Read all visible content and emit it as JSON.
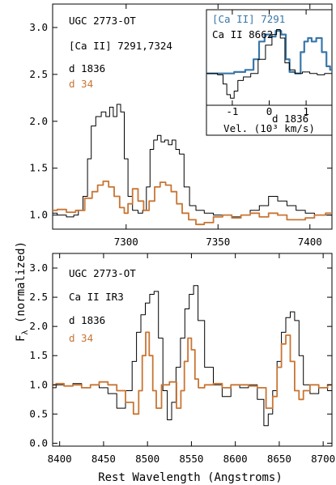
{
  "figure": {
    "ylabel": "F",
    "ylabel_sub": "λ",
    "ylabel_rest": " (normalized)",
    "xlabel": "Rest Wavelength (Angstroms)"
  },
  "colors": {
    "black": "#000000",
    "orange": "#c87533",
    "blue": "#3a77a8"
  },
  "chart_data": [
    {
      "type": "line",
      "panel": "top",
      "xlim": [
        7260,
        7412
      ],
      "ylim": [
        0.85,
        3.25
      ],
      "xticks": [
        7300,
        7350,
        7400
      ],
      "yticks": [
        1.0,
        1.5,
        2.0,
        2.5,
        3.0
      ],
      "ytick_labels": [
        "1.0",
        "1.5",
        "2.0",
        "2.5",
        "3.0"
      ],
      "annotations": [
        {
          "text": "UGC 2773-OT",
          "color": "#000000"
        },
        {
          "text": "[Ca II] 7291,7324",
          "color": "#000000"
        },
        {
          "text": "d 1836",
          "color": "#000000"
        },
        {
          "text": "d 34",
          "color": "#c87533"
        }
      ],
      "series": [
        {
          "name": "d 1836",
          "color": "#000000",
          "x": [
            7260,
            7265,
            7270,
            7273,
            7275,
            7278,
            7280,
            7282,
            7285,
            7288,
            7290,
            7292,
            7294,
            7296,
            7298,
            7300,
            7302,
            7305,
            7308,
            7310,
            7312,
            7314,
            7316,
            7318,
            7320,
            7322,
            7324,
            7326,
            7328,
            7330,
            7333,
            7336,
            7340,
            7345,
            7350,
            7355,
            7360,
            7365,
            7370,
            7375,
            7380,
            7385,
            7390,
            7395,
            7400,
            7405,
            7412
          ],
          "y": [
            1.02,
            1.0,
            0.98,
            1.0,
            1.05,
            1.2,
            1.6,
            1.95,
            2.05,
            2.1,
            2.05,
            2.15,
            2.05,
            2.18,
            2.1,
            1.6,
            1.2,
            1.05,
            1.02,
            1.05,
            1.3,
            1.7,
            1.8,
            1.85,
            1.78,
            1.8,
            1.75,
            1.8,
            1.7,
            1.65,
            1.3,
            1.1,
            1.05,
            1.02,
            1.0,
            1.0,
            0.98,
            1.0,
            1.05,
            1.1,
            1.2,
            1.15,
            1.1,
            1.05,
            1.02,
            1.0,
            1.0
          ]
        },
        {
          "name": "d 34",
          "color": "#c87533",
          "x": [
            7260,
            7265,
            7270,
            7275,
            7280,
            7283,
            7286,
            7289,
            7292,
            7295,
            7298,
            7300,
            7302,
            7305,
            7308,
            7311,
            7314,
            7317,
            7320,
            7323,
            7326,
            7329,
            7332,
            7336,
            7340,
            7345,
            7350,
            7355,
            7360,
            7365,
            7370,
            7375,
            7380,
            7385,
            7390,
            7395,
            7400,
            7405,
            7412
          ],
          "y": [
            1.05,
            1.06,
            1.03,
            1.05,
            1.18,
            1.25,
            1.32,
            1.36,
            1.3,
            1.2,
            1.08,
            1.02,
            1.12,
            1.28,
            1.15,
            1.05,
            1.15,
            1.3,
            1.35,
            1.32,
            1.25,
            1.12,
            1.02,
            0.95,
            0.9,
            0.92,
            0.98,
            1.0,
            0.97,
            1.0,
            1.02,
            0.98,
            1.02,
            1.0,
            0.95,
            0.95,
            0.97,
            1.0,
            1.02
          ]
        }
      ]
    },
    {
      "type": "line",
      "panel": "top-inset",
      "xlim": [
        -1.7,
        1.7
      ],
      "ylim": [
        0.55,
        1.9
      ],
      "xticks": [
        -1,
        0,
        1
      ],
      "xtick_labels": [
        "-1",
        "0",
        "1"
      ],
      "xlabel": "Vel. (10³ km/s)",
      "legend": "top-left",
      "annotations": [
        {
          "text": "[Ca II] 7291",
          "color": "#3a77a8"
        },
        {
          "text": "Ca II 8662",
          "color": "#000000"
        },
        {
          "text": "d 1836",
          "color": "#000000"
        }
      ],
      "series": [
        {
          "name": "[Ca II] 7291",
          "color": "#3a77a8",
          "x": [
            -1.7,
            -1.4,
            -1.1,
            -0.8,
            -0.5,
            -0.35,
            -0.2,
            -0.05,
            0.1,
            0.25,
            0.4,
            0.5,
            0.6,
            0.8,
            0.9,
            1.0,
            1.1,
            1.2,
            1.35,
            1.5,
            1.6,
            1.7
          ],
          "y": [
            1.0,
            1.0,
            1.0,
            1.02,
            1.05,
            1.2,
            1.45,
            1.55,
            1.52,
            1.6,
            1.55,
            1.2,
            1.02,
            1.0,
            1.3,
            1.45,
            1.5,
            1.45,
            1.5,
            1.3,
            1.1,
            1.05
          ]
        },
        {
          "name": "Ca II 8662",
          "color": "#000000",
          "x": [
            -1.7,
            -1.5,
            -1.3,
            -1.2,
            -1.1,
            -1.0,
            -0.9,
            -0.8,
            -0.6,
            -0.4,
            -0.2,
            0.0,
            0.15,
            0.25,
            0.35,
            0.5,
            0.6,
            0.8,
            1.0,
            1.2,
            1.4,
            1.6,
            1.7
          ],
          "y": [
            1.0,
            1.0,
            0.98,
            0.85,
            0.7,
            0.65,
            0.75,
            0.9,
            0.95,
            1.0,
            1.2,
            1.4,
            1.55,
            1.62,
            1.5,
            1.15,
            1.05,
            1.0,
            1.02,
            1.0,
            0.98,
            1.0,
            1.0
          ]
        }
      ]
    },
    {
      "type": "line",
      "panel": "bottom",
      "xlim": [
        8392,
        8710
      ],
      "ylim": [
        -0.05,
        3.25
      ],
      "xticks": [
        8400,
        8450,
        8500,
        8550,
        8600,
        8650,
        8700
      ],
      "yticks": [
        0.0,
        0.5,
        1.0,
        1.5,
        2.0,
        2.5,
        3.0
      ],
      "ytick_labels": [
        "0.0",
        "0.5",
        "1.0",
        "1.5",
        "2.0",
        "2.5",
        "3.0"
      ],
      "annotations": [
        {
          "text": "UGC 2773-OT",
          "color": "#000000"
        },
        {
          "text": "Ca II IR3",
          "color": "#000000"
        },
        {
          "text": "d 1836",
          "color": "#000000"
        },
        {
          "text": "d 34",
          "color": "#c87533"
        }
      ],
      "series": [
        {
          "name": "d 1836",
          "color": "#000000",
          "x": [
            8392,
            8400,
            8410,
            8420,
            8430,
            8440,
            8450,
            8460,
            8470,
            8480,
            8485,
            8490,
            8495,
            8500,
            8505,
            8510,
            8515,
            8520,
            8525,
            8530,
            8535,
            8540,
            8545,
            8550,
            8555,
            8560,
            8570,
            8580,
            8590,
            8600,
            8610,
            8620,
            8630,
            8635,
            8640,
            8645,
            8650,
            8655,
            8660,
            8665,
            8670,
            8675,
            8680,
            8690,
            8700,
            8710
          ],
          "y": [
            0.95,
            1.0,
            0.98,
            1.02,
            0.95,
            1.0,
            0.95,
            0.85,
            0.6,
            0.9,
            1.4,
            1.9,
            2.2,
            2.4,
            2.55,
            2.6,
            1.8,
            0.9,
            0.4,
            0.7,
            1.3,
            1.8,
            2.3,
            2.55,
            2.7,
            2.1,
            1.3,
            1.0,
            0.8,
            1.0,
            0.95,
            1.0,
            0.75,
            0.3,
            0.5,
            0.9,
            1.4,
            1.9,
            2.15,
            2.25,
            2.1,
            1.5,
            1.0,
            0.85,
            0.95,
            0.9
          ]
        },
        {
          "name": "d 34",
          "color": "#c87533",
          "x": [
            8392,
            8400,
            8410,
            8420,
            8430,
            8440,
            8450,
            8460,
            8470,
            8480,
            8488,
            8492,
            8496,
            8500,
            8504,
            8508,
            8512,
            8520,
            8530,
            8536,
            8540,
            8544,
            8548,
            8552,
            8556,
            8560,
            8570,
            8580,
            8590,
            8600,
            8610,
            8620,
            8630,
            8640,
            8645,
            8650,
            8655,
            8660,
            8665,
            8670,
            8675,
            8680,
            8690,
            8700,
            8710
          ],
          "y": [
            1.0,
            1.02,
            0.98,
            1.0,
            0.95,
            1.0,
            1.05,
            1.0,
            0.9,
            0.7,
            0.5,
            0.9,
            1.5,
            1.9,
            1.5,
            0.9,
            0.6,
            1.0,
            1.05,
            0.6,
            0.9,
            1.4,
            1.8,
            1.6,
            1.1,
            0.95,
            1.0,
            1.02,
            0.95,
            1.0,
            1.0,
            0.98,
            0.95,
            0.6,
            0.8,
            1.3,
            1.7,
            1.85,
            1.4,
            0.9,
            0.75,
            0.9,
            1.0,
            0.95,
            1.0
          ]
        }
      ]
    }
  ]
}
